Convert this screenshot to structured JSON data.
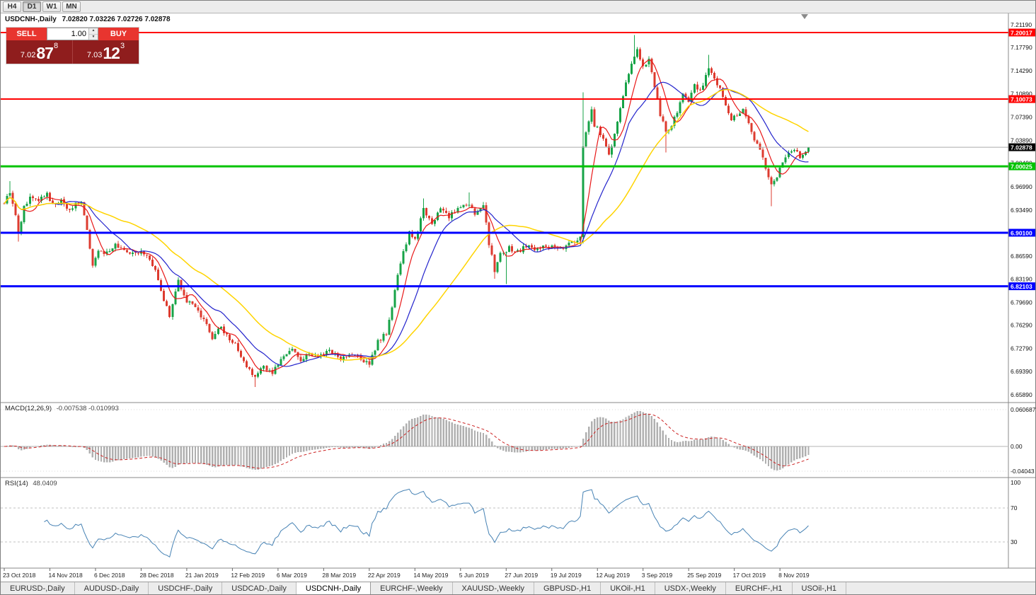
{
  "toolbar": {
    "timeframes": [
      {
        "label": "H4",
        "active": false
      },
      {
        "label": "D1",
        "active": true
      },
      {
        "label": "W1",
        "active": false
      },
      {
        "label": "MN",
        "active": false
      }
    ]
  },
  "chart": {
    "symbol_tf": "USDCNH-,Daily",
    "ohlc": "7.02820 7.03226 7.02726 7.02878"
  },
  "trade_panel": {
    "sell_label": "SELL",
    "buy_label": "BUY",
    "volume": "1.00",
    "spinner_up": "▲",
    "spinner_down": "▼",
    "sell_price": {
      "prefix": "7.02",
      "big": "87",
      "sup": "8"
    },
    "buy_price": {
      "prefix": "7.03",
      "big": "12",
      "sup": "3"
    }
  },
  "price_axis": {
    "labels": [
      "7.21190",
      "7.17790",
      "7.14290",
      "7.10890",
      "7.07390",
      "7.03890",
      "7.00490",
      "6.96990",
      "6.93490",
      "6.90090",
      "6.86590",
      "6.83190",
      "6.79690",
      "6.76290",
      "6.72790",
      "6.69390",
      "6.65890"
    ]
  },
  "time_axis": {
    "bars_per_label": 16,
    "labels": [
      "23 Oct 2018",
      "14 Nov 2018",
      "6 Dec 2018",
      "28 Dec 2018",
      "21 Jan 2019",
      "12 Feb 2019",
      "6 Mar 2019",
      "28 Mar 2019",
      "22 Apr 2019",
      "14 May 2019",
      "5 Jun 2019",
      "27 Jun 2019",
      "19 Jul 2019",
      "12 Aug 2019",
      "3 Sep 2019",
      "25 Sep 2019",
      "17 Oct 2019",
      "8 Nov 2019"
    ]
  },
  "levels": [
    {
      "label": "7.20017",
      "price": 7.20017,
      "color": "#ff0000",
      "width": 2
    },
    {
      "label": "7.10073",
      "price": 7.10073,
      "color": "#ff0000",
      "width": 2
    },
    {
      "label": "7.00025",
      "price": 7.00025,
      "color": "#00c300",
      "width": 3
    },
    {
      "label": "6.90100",
      "price": 6.901,
      "color": "#0000ff",
      "width": 3
    },
    {
      "label": "6.82103",
      "price": 6.82103,
      "color": "#0000ff",
      "width": 3
    }
  ],
  "current_price": {
    "label": "7.02878",
    "value": 7.02878,
    "box_color": "#000000",
    "text_color": "#ffffff"
  },
  "macd": {
    "name": "MACD(12,26,9)",
    "values": "-0.007538 -0.010993",
    "axis": [
      "0.060687",
      "0.00",
      "-0.04043"
    ]
  },
  "rsi": {
    "name": "RSI(14)",
    "value": "48.0409",
    "axis": [
      "100",
      "70",
      "30"
    ],
    "levels": [
      70,
      30
    ]
  },
  "tabs": [
    {
      "label": "EURUSD-,Daily",
      "active": false
    },
    {
      "label": "AUDUSD-,Daily",
      "active": false
    },
    {
      "label": "USDCHF-,Daily",
      "active": false
    },
    {
      "label": "USDCAD-,Daily",
      "active": false
    },
    {
      "label": "USDCNH-,Daily",
      "active": true
    },
    {
      "label": "EURCHF-,Weekly",
      "active": false
    },
    {
      "label": "XAUUSD-,Weekly",
      "active": false
    },
    {
      "label": "GBPUSD-,H1",
      "active": false
    },
    {
      "label": "UKOil-,H1",
      "active": false
    },
    {
      "label": "USDX-,Weekly",
      "active": false
    },
    {
      "label": "EURCHF-,H1",
      "active": false
    },
    {
      "label": "USOil-,H1",
      "active": false
    }
  ],
  "chart_data": {
    "type": "candlestick",
    "symbol": "USDCNH-",
    "timeframe": "Daily",
    "count": 283,
    "ylim": [
      6.648,
      7.229
    ],
    "last_close": 7.02878,
    "noise": 0.0032,
    "keypoints": [
      [
        0,
        6.945
      ],
      [
        2,
        6.962
      ],
      [
        4,
        6.93
      ],
      [
        5,
        6.898
      ],
      [
        7,
        6.94
      ],
      [
        9,
        6.952
      ],
      [
        12,
        6.948
      ],
      [
        15,
        6.96
      ],
      [
        17,
        6.942
      ],
      [
        20,
        6.948
      ],
      [
        23,
        6.935
      ],
      [
        25,
        6.945
      ],
      [
        27,
        6.948
      ],
      [
        29,
        6.905
      ],
      [
        31,
        6.852
      ],
      [
        33,
        6.875
      ],
      [
        36,
        6.87
      ],
      [
        39,
        6.882
      ],
      [
        43,
        6.872
      ],
      [
        47,
        6.872
      ],
      [
        50,
        6.868
      ],
      [
        53,
        6.846
      ],
      [
        56,
        6.8
      ],
      [
        58,
        6.778
      ],
      [
        61,
        6.828
      ],
      [
        64,
        6.8
      ],
      [
        67,
        6.788
      ],
      [
        70,
        6.772
      ],
      [
        73,
        6.745
      ],
      [
        76,
        6.76
      ],
      [
        79,
        6.74
      ],
      [
        81,
        6.735
      ],
      [
        83,
        6.718
      ],
      [
        85,
        6.7
      ],
      [
        88,
        6.686
      ],
      [
        91,
        6.7
      ],
      [
        94,
        6.692
      ],
      [
        98,
        6.715
      ],
      [
        101,
        6.73
      ],
      [
        104,
        6.71
      ],
      [
        107,
        6.722
      ],
      [
        110,
        6.715
      ],
      [
        114,
        6.726
      ],
      [
        118,
        6.712
      ],
      [
        122,
        6.72
      ],
      [
        126,
        6.71
      ],
      [
        128,
        6.705
      ],
      [
        131,
        6.738
      ],
      [
        134,
        6.752
      ],
      [
        136,
        6.79
      ],
      [
        138,
        6.838
      ],
      [
        140,
        6.872
      ],
      [
        142,
        6.9
      ],
      [
        144,
        6.89
      ],
      [
        147,
        6.935
      ],
      [
        150,
        6.915
      ],
      [
        153,
        6.938
      ],
      [
        156,
        6.925
      ],
      [
        159,
        6.935
      ],
      [
        162,
        6.945
      ],
      [
        165,
        6.93
      ],
      [
        168,
        6.945
      ],
      [
        170,
        6.885
      ],
      [
        172,
        6.845
      ],
      [
        174,
        6.868
      ],
      [
        177,
        6.878
      ],
      [
        180,
        6.872
      ],
      [
        183,
        6.882
      ],
      [
        186,
        6.875
      ],
      [
        189,
        6.882
      ],
      [
        192,
        6.88
      ],
      [
        195,
        6.876
      ],
      [
        198,
        6.884
      ],
      [
        201,
        6.888
      ],
      [
        202,
        6.892
      ],
      [
        203,
        7.03
      ],
      [
        204,
        7.052
      ],
      [
        206,
        7.088
      ],
      [
        207,
        7.062
      ],
      [
        208,
        7.057
      ],
      [
        210,
        7.04
      ],
      [
        212,
        7.018
      ],
      [
        214,
        7.048
      ],
      [
        216,
        7.085
      ],
      [
        218,
        7.125
      ],
      [
        220,
        7.155
      ],
      [
        222,
        7.178
      ],
      [
        224,
        7.148
      ],
      [
        226,
        7.158
      ],
      [
        228,
        7.118
      ],
      [
        230,
        7.078
      ],
      [
        232,
        7.052
      ],
      [
        234,
        7.062
      ],
      [
        236,
        7.082
      ],
      [
        238,
        7.108
      ],
      [
        240,
        7.095
      ],
      [
        242,
        7.122
      ],
      [
        244,
        7.112
      ],
      [
        246,
        7.135
      ],
      [
        247,
        7.15
      ],
      [
        249,
        7.13
      ],
      [
        251,
        7.118
      ],
      [
        253,
        7.092
      ],
      [
        255,
        7.072
      ],
      [
        257,
        7.078
      ],
      [
        259,
        7.085
      ],
      [
        261,
        7.062
      ],
      [
        263,
        7.04
      ],
      [
        265,
        7.028
      ],
      [
        267,
        6.998
      ],
      [
        269,
        6.972
      ],
      [
        271,
        6.985
      ],
      [
        273,
        7.008
      ],
      [
        275,
        7.02
      ],
      [
        277,
        7.028
      ],
      [
        279,
        7.015
      ],
      [
        281,
        7.025
      ],
      [
        282,
        7.029
      ]
    ],
    "wick_overrides": [
      [
        2,
        "high",
        6.978
      ],
      [
        5,
        "low",
        6.8875
      ],
      [
        58,
        "low",
        6.7735
      ],
      [
        88,
        "low",
        6.6705
      ],
      [
        147,
        "high",
        6.952
      ],
      [
        163,
        "high",
        6.961
      ],
      [
        172,
        "low",
        6.832
      ],
      [
        176,
        "low",
        6.8245
      ],
      [
        203,
        "high",
        7.111
      ],
      [
        203,
        "low",
        6.885
      ],
      [
        221,
        "high",
        7.1965
      ],
      [
        232,
        "low",
        7.021
      ],
      [
        247,
        "high",
        7.167
      ],
      [
        269,
        "low",
        6.9405
      ]
    ],
    "moving_averages": [
      {
        "period": 7,
        "color": "#e81717"
      },
      {
        "period": 17,
        "color": "#2323cc"
      },
      {
        "period": 38,
        "color": "#ffd400"
      }
    ],
    "colors": {
      "up": "#17a347",
      "down": "#dd3b2f",
      "macd_hist": "#b0b0b0",
      "macd_signal": "#cc2222",
      "rsi_line": "#4682b4",
      "level_dash": "#c0c0c0",
      "current_price_line": "#aaaaaa"
    }
  }
}
